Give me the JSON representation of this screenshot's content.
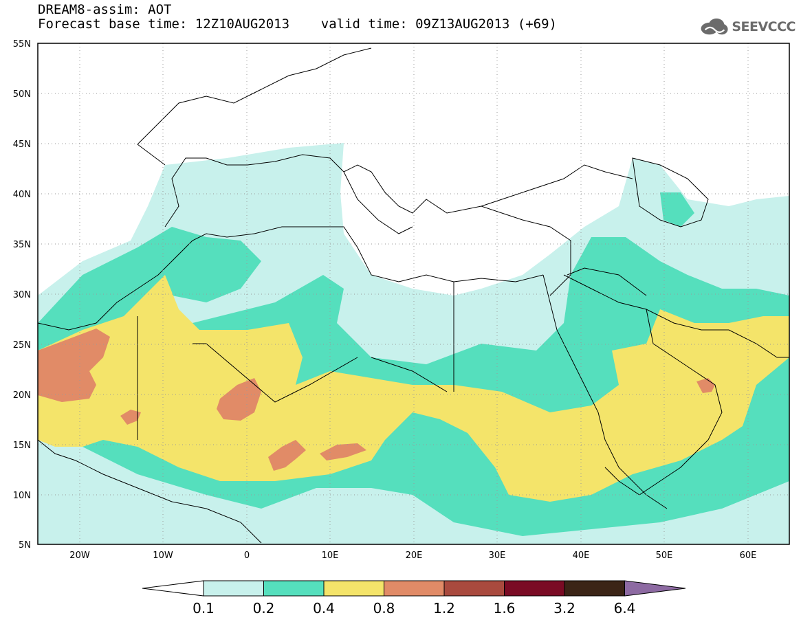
{
  "header": {
    "title_line1": "DREAM8-assim: AOT",
    "title_line2": "Forecast base time: 12Z10AUG2013    valid time: 09Z13AUG2013 (+69)"
  },
  "logo": {
    "text": "SEEVCCC",
    "icon": "cloud-logo-icon"
  },
  "map": {
    "lat_ticks": [
      "55N",
      "50N",
      "45N",
      "40N",
      "35N",
      "30N",
      "25N",
      "20N",
      "15N",
      "10N",
      "5N"
    ],
    "lon_ticks": [
      "20W",
      "10W",
      "0",
      "10E",
      "20E",
      "30E",
      "40E",
      "50E",
      "60E"
    ],
    "lat_range": [
      5,
      55
    ],
    "lon_range": [
      -25,
      65
    ],
    "grid": "dotted"
  },
  "colorbar": {
    "labels": [
      "0.1",
      "0.2",
      "0.4",
      "0.8",
      "1.2",
      "1.6",
      "3.2",
      "6.4"
    ],
    "colors": [
      "#ffffff",
      "#c8f1ec",
      "#55dfbd",
      "#f4e46a",
      "#e18b67",
      "#a94a3e",
      "#7a0b24",
      "#3b2416",
      "#8d6aa2"
    ]
  }
}
